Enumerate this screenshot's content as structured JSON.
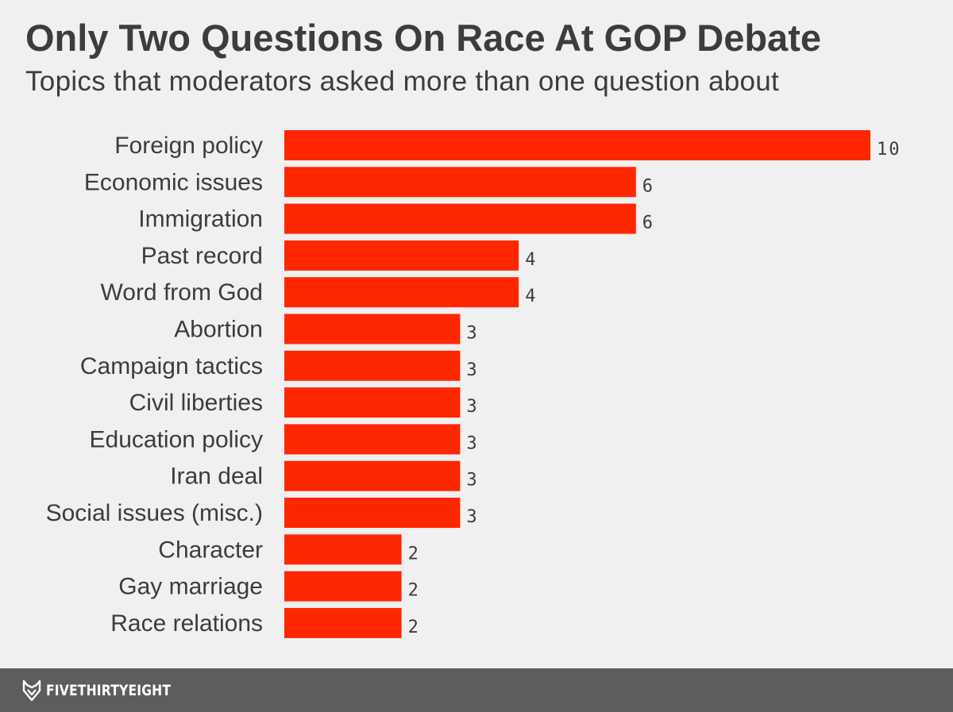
{
  "header": {
    "title": "Only Two Questions On Race At GOP Debate",
    "subtitle": "Topics that moderators asked more than one question about"
  },
  "chart_data": {
    "type": "bar",
    "orientation": "horizontal",
    "categories": [
      "Foreign policy",
      "Economic issues",
      "Immigration",
      "Past record",
      "Word from God",
      "Abortion",
      "Campaign tactics",
      "Civil liberties",
      "Education policy",
      "Iran deal",
      "Social issues (misc.)",
      "Character",
      "Gay marriage",
      "Race relations"
    ],
    "values": [
      10,
      6,
      6,
      4,
      4,
      3,
      3,
      3,
      3,
      3,
      3,
      2,
      2,
      2
    ],
    "title": "Only Two Questions On Race At GOP Debate",
    "subtitle": "Topics that moderators asked more than one question about",
    "xlabel": "",
    "ylabel": "",
    "xlim": [
      0,
      10
    ],
    "grid": false,
    "legend": "none",
    "bar_color": "#ff2700"
  },
  "footer": {
    "brand": "FIVETHIRTYEIGHT",
    "logo_icon": "fox-logo-icon",
    "background": "#5c5e5e"
  }
}
